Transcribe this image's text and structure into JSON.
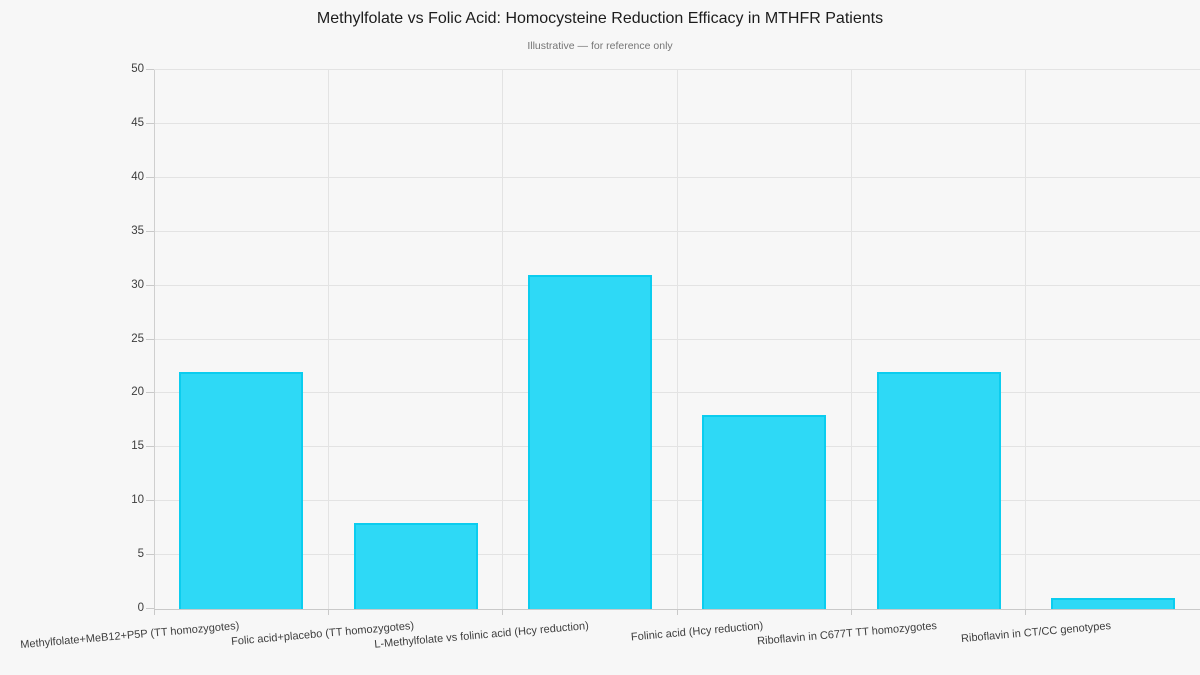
{
  "page": {
    "background": "#f7f7f7"
  },
  "chart_data": {
    "type": "bar",
    "title": "Methylfolate vs Folic Acid: Homocysteine Reduction Efficacy in MTHFR Patients",
    "subtitle": "Illustrative — for reference only",
    "categories": [
      "Methylfolate+MeB12+P5P (TT homozygotes)",
      "Folic acid+placebo (TT homozygotes)",
      "L-Methylfolate vs folinic acid (Hcy reduction)",
      "Folinic acid (Hcy reduction)",
      "Riboflavin in C677T TT homozygotes",
      "Riboflavin in CT/CC genotypes"
    ],
    "values": [
      22,
      8,
      31,
      18,
      22,
      1
    ],
    "xlabel": "",
    "ylabel": "",
    "ylim": [
      0,
      50
    ],
    "ytick_step": 5,
    "grid": true,
    "legend_position": "none",
    "bar_color": "#2ed9f6",
    "bar_border_color": "#0bcdef",
    "grid_color": "#e3e3e3",
    "axis_color": "#c9c9c9",
    "tick_label_color": "#3d3d3d",
    "title_color": "#1c1c1c",
    "subtitle_color": "#757575",
    "background_color": "#f7f7f7"
  }
}
